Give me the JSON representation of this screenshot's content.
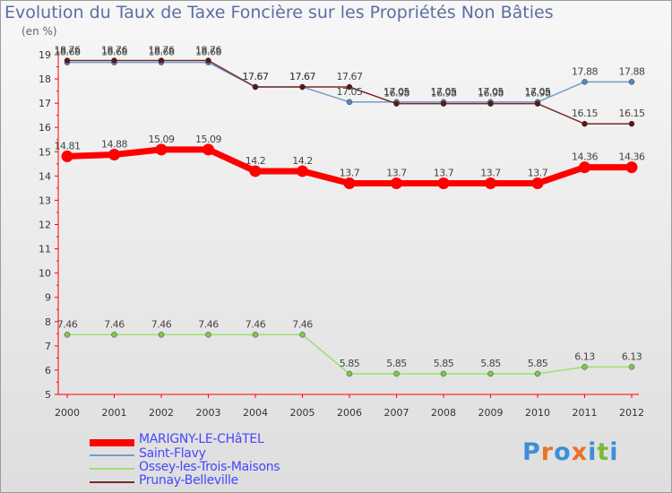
{
  "title": "Evolution du Taux de Taxe Foncière sur les Propriétés Non Bâties",
  "unit": "(en %)",
  "logo": {
    "text": "Proxiti",
    "colors": [
      "#3c8fd6",
      "#e8722a",
      "#3c8fd6",
      "#e8722a",
      "#3c8fd6",
      "#7ab93a",
      "#3c8fd6"
    ]
  },
  "chart_data": {
    "type": "line",
    "categories": [
      "2000",
      "2001",
      "2002",
      "2003",
      "2004",
      "2005",
      "2006",
      "2007",
      "2008",
      "2009",
      "2010",
      "2011",
      "2012"
    ],
    "ylim": [
      5,
      19
    ],
    "yticks": [
      "5",
      "6",
      "7",
      "8",
      "9",
      "10",
      "11",
      "12",
      "13",
      "14",
      "15",
      "16",
      "17",
      "18",
      "19"
    ],
    "grid": false,
    "legend_position": "bottom-left",
    "series": [
      {
        "name": "Saint-Flavy",
        "color": "#6f9fc9",
        "marker": "#5c86b8",
        "values": [
          18.68,
          18.68,
          18.68,
          18.68,
          17.67,
          17.67,
          17.05,
          17.05,
          17.05,
          17.05,
          17.05,
          17.88,
          17.88
        ],
        "labels": [
          "18.68",
          "18.68",
          "18.68",
          "18.68",
          "17.67",
          "17.67",
          "17.05",
          "17.05",
          "17.05",
          "17.05",
          "17.05",
          "17.88",
          "17.88"
        ]
      },
      {
        "name": "Ossey-les-Trois-Maisons",
        "color": "#9be072",
        "marker": "#7dc94f",
        "values": [
          7.46,
          7.46,
          7.46,
          7.46,
          7.46,
          7.46,
          5.85,
          5.85,
          5.85,
          5.85,
          5.85,
          6.13,
          6.13
        ],
        "labels": [
          "7.46",
          "7.46",
          "7.46",
          "7.46",
          "7.46",
          "7.46",
          "5.85",
          "5.85",
          "5.85",
          "5.85",
          "5.85",
          "6.13",
          "6.13"
        ]
      },
      {
        "name": "Prunay-Belleville",
        "color": "#7a2a2a",
        "marker": "#5a1818",
        "values": [
          18.76,
          18.76,
          18.76,
          18.76,
          17.67,
          17.67,
          17.67,
          16.98,
          16.98,
          16.98,
          16.98,
          16.15,
          16.15
        ],
        "labels": [
          "18.76",
          "18.76",
          "18.76",
          "18.76",
          "17.67",
          "17.67",
          "17.67",
          "16.98",
          "16.98",
          "16.98",
          "16.98",
          "16.15",
          "16.15"
        ]
      },
      {
        "name": "MARIGNY-LE-CHâTEL",
        "color": "#ff0000",
        "marker": "#ff0000",
        "values": [
          14.81,
          14.88,
          15.09,
          15.09,
          14.2,
          14.2,
          13.7,
          13.7,
          13.7,
          13.7,
          13.7,
          14.36,
          14.36
        ],
        "labels": [
          "14.81",
          "14.88",
          "15.09",
          "15.09",
          "14.2",
          "14.2",
          "13.7",
          "13.7",
          "13.7",
          "13.7",
          "13.7",
          "14.36",
          "14.36"
        ]
      }
    ],
    "legend": [
      "MARIGNY-LE-CHâTEL",
      "Saint-Flavy",
      "Ossey-les-Trois-Maisons",
      "Prunay-Belleville"
    ]
  }
}
